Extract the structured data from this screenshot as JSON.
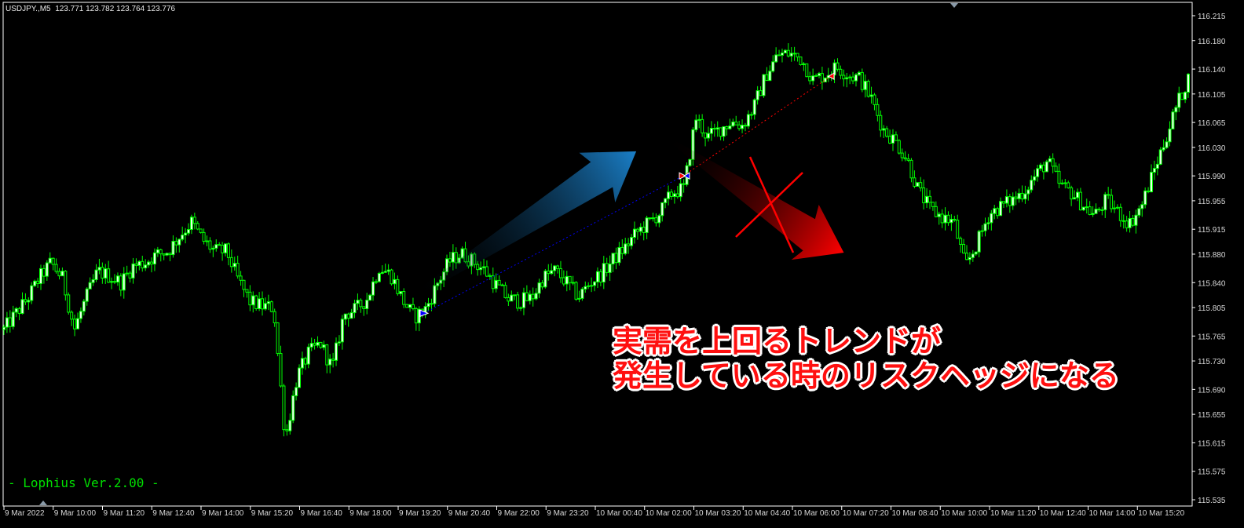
{
  "header": {
    "symbol": "USDJPY.,M5",
    "ohlc": "123.771 123.782 123.764 123.776"
  },
  "watermark": "- Lophius Ver.2.00 -",
  "annotation": {
    "line1": "実需を上回るトレンドが",
    "line2": "発生している時のリスクヘッジになる",
    "text_color": "#ff1010",
    "up_arrow_color": "#1a7fc8",
    "down_arrow_color": "#ff0000",
    "cross_color": "#ff0000"
  },
  "chart_data": {
    "type": "candlestick",
    "symbol": "USDJPY.",
    "timeframe": "M5",
    "grid": false,
    "ylim": [
      115.535,
      116.215
    ],
    "candle_color": "#00ff00",
    "background": "#000000",
    "y_ticks": [
      "116.215",
      "116.180",
      "116.140",
      "116.105",
      "116.065",
      "116.030",
      "115.990",
      "115.955",
      "115.915",
      "115.880",
      "115.840",
      "115.805",
      "115.765",
      "115.730",
      "115.690",
      "115.655",
      "115.615",
      "115.575",
      "115.535"
    ],
    "x_ticks": [
      "9 Mar 2022",
      "9 Mar 10:00",
      "9 Mar 11:20",
      "9 Mar 12:40",
      "9 Mar 14:00",
      "9 Mar 15:20",
      "9 Mar 16:40",
      "9 Mar 18:00",
      "9 Mar 19:20",
      "9 Mar 20:40",
      "9 Mar 22:00",
      "9 Mar 23:20",
      "10 Mar 00:40",
      "10 Mar 02:00",
      "10 Mar 03:20",
      "10 Mar 04:40",
      "10 Mar 06:00",
      "10 Mar 07:20",
      "10 Mar 08:40",
      "10 Mar 10:00",
      "10 Mar 11:20",
      "10 Mar 12:40",
      "10 Mar 14:00",
      "10 Mar 15:20"
    ],
    "close_path": [
      115.774,
      115.796,
      115.817,
      115.846,
      115.868,
      115.846,
      115.774,
      115.818,
      115.856,
      115.849,
      115.84,
      115.863,
      115.868,
      115.879,
      115.884,
      115.906,
      115.925,
      115.899,
      115.884,
      115.884,
      115.843,
      115.813,
      115.807,
      115.805,
      115.62,
      115.708,
      115.741,
      115.755,
      115.719,
      115.796,
      115.802,
      115.818,
      115.862,
      115.851,
      115.816,
      115.791,
      115.804,
      115.84,
      115.87,
      115.881,
      115.87,
      115.857,
      115.836,
      115.817,
      115.814,
      115.818,
      115.847,
      115.857,
      115.84,
      115.82,
      115.84,
      115.853,
      115.873,
      115.89,
      115.911,
      115.924,
      115.939,
      115.967,
      115.972,
      116.072,
      116.044,
      116.055,
      116.066,
      116.061,
      116.088,
      116.132,
      116.16,
      116.162,
      116.154,
      116.125,
      116.132,
      116.143,
      116.132,
      116.127,
      116.097,
      116.055,
      116.039,
      116.014,
      115.969,
      115.943,
      115.932,
      115.925,
      115.862,
      115.895,
      115.936,
      115.947,
      115.956,
      115.969,
      115.991,
      116.011,
      115.978,
      115.967,
      115.95,
      115.934,
      115.956,
      115.939,
      115.923,
      115.947,
      115.994,
      116.039,
      116.088,
      116.127
    ],
    "trades": [
      {
        "type": "buy",
        "open": 115.797,
        "close": 115.99,
        "color": "#0000ff"
      },
      {
        "type": "sell",
        "open": 115.99,
        "close": 116.13,
        "color": "#ff0000"
      }
    ]
  }
}
